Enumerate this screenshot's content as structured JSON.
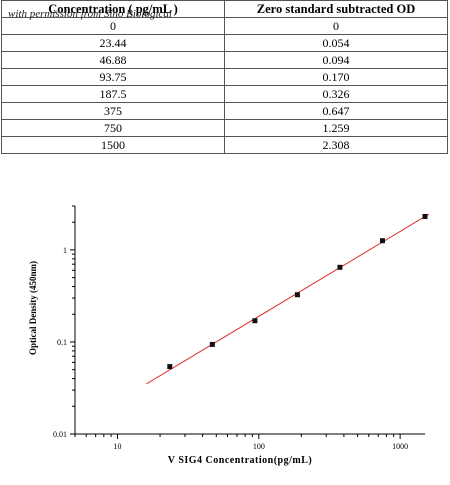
{
  "table": {
    "watermark": "with permission from Sino Biological",
    "headers": [
      "Concentration ( pg/mL )",
      "Zero standard subtracted OD"
    ],
    "rows": [
      [
        "0",
        "0"
      ],
      [
        "23.44",
        "0.054"
      ],
      [
        "46.88",
        "0.094"
      ],
      [
        "93.75",
        "0.170"
      ],
      [
        "187.5",
        "0.326"
      ],
      [
        "375",
        "0.647"
      ],
      [
        "750",
        "1.259"
      ],
      [
        "1500",
        "2.308"
      ]
    ]
  },
  "chart_data": {
    "type": "scatter",
    "title": "",
    "xlabel": "V SIG4  Concentration(pg/mL)",
    "ylabel": "Optical Density (450nm)",
    "xscale": "log",
    "yscale": "log",
    "xlim": [
      5,
      1500
    ],
    "ylim": [
      0.01,
      3
    ],
    "xticks": [
      10,
      100,
      1000
    ],
    "xtick_labels": [
      "10",
      "100",
      "1000"
    ],
    "yticks": [
      0.01,
      0.1,
      1
    ],
    "ytick_labels": [
      "0.01",
      "0.1",
      "1"
    ],
    "grid": false,
    "series": [
      {
        "x": [
          23.44,
          46.88,
          93.75,
          187.5,
          375,
          750,
          1500
        ],
        "y": [
          0.054,
          0.094,
          0.17,
          0.326,
          0.647,
          1.259,
          2.308
        ],
        "color": "#111111"
      }
    ],
    "fit_line": {
      "x": [
        16,
        1600
      ],
      "y": [
        0.035,
        2.45
      ],
      "color": "#e03030"
    }
  }
}
